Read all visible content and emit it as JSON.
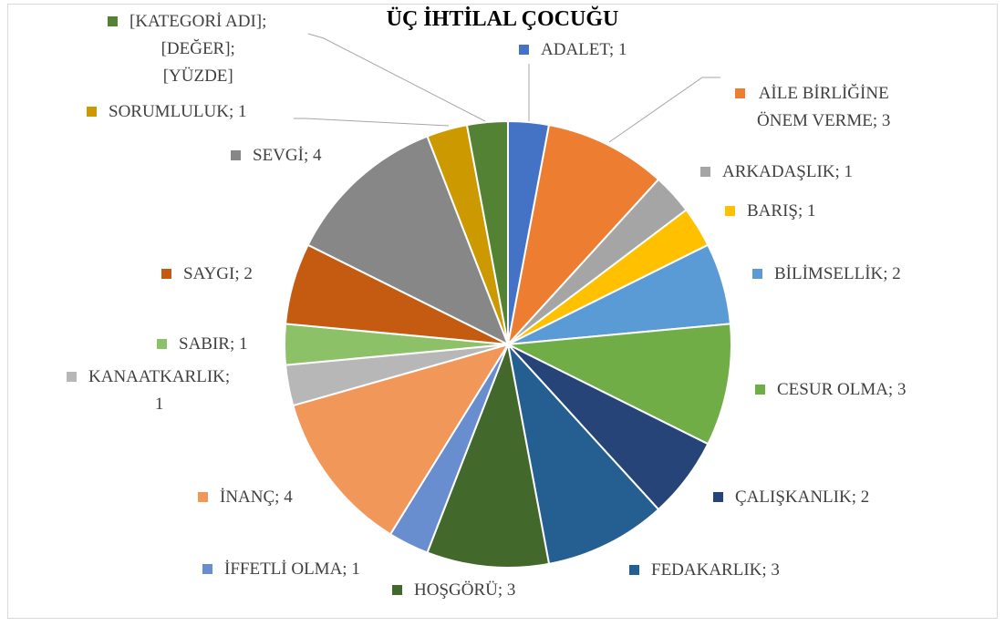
{
  "chart_data": {
    "type": "pie",
    "title": "ÜÇ İHTİLAL ÇOCUĞU",
    "values": [
      1,
      3,
      1,
      1,
      2,
      3,
      2,
      3,
      3,
      1,
      4,
      1,
      1,
      2,
      4,
      1,
      1
    ],
    "value_labels": [
      "ADALET; 1",
      "AİLE BİRLİĞİNE\nÖNEM VERME; 3",
      "ARKADAŞLIK; 1",
      "BARIŞ; 1",
      "BİLİMSELLİK; 2",
      "CESUR OLMA; 3",
      "ÇALIŞKANLIK; 2",
      "FEDAKARLIK; 3",
      "HOŞGÖRÜ; 3",
      "İFFETLİ OLMA; 1",
      "İNANÇ; 4",
      "KANAATKARLIK;\n1",
      "SABIR; 1",
      "SAYGI; 2",
      "SEVGİ; 4",
      "SORUMLULUK; 1",
      "[KATEGORİ ADI];\n[DEĞER];\n[YÜZDE]"
    ],
    "colors": [
      "#4472c4",
      "#ed7d31",
      "#a5a5a5",
      "#ffc000",
      "#5b9bd5",
      "#70ad47",
      "#264478",
      "#255e91",
      "#43682b",
      "#698ed0",
      "#f1975a",
      "#b7b7b7",
      "#8cc168",
      "#c55a11",
      "#878787",
      "#cc9a00",
      "#548235"
    ]
  }
}
